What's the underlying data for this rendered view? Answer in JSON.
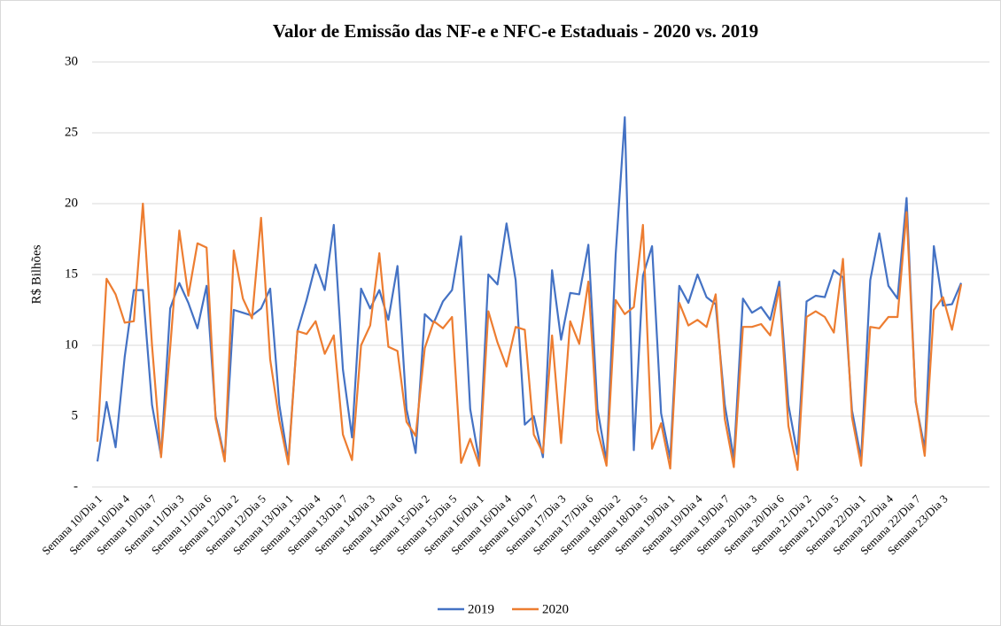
{
  "chart_data": {
    "type": "line",
    "title": "Valor de Emissão das NF-e e NFC-e Estaduais - 2020 vs. 2019",
    "y_label": "R$ Bilhões",
    "categories": [
      "Semana 10/Dia 1",
      null,
      null,
      "Semana 10/Dia 4",
      null,
      null,
      "Semana 10/Dia 7",
      null,
      null,
      "Semana 11/Dia 3",
      null,
      null,
      "Semana 11/Dia 6",
      null,
      null,
      "Semana 12/Dia 2",
      null,
      null,
      "Semana 12/Dia 5",
      null,
      null,
      "Semana 13/Dia 1",
      null,
      null,
      "Semana 13/Dia 4",
      null,
      null,
      "Semana 13/Dia 7",
      null,
      null,
      "Semana 14/Dia 3",
      null,
      null,
      "Semana 14/Dia 6",
      null,
      null,
      "Semana 15/Dia 2",
      null,
      null,
      "Semana 15/Dia 5",
      null,
      null,
      "Semana 16/Dia 1",
      null,
      null,
      "Semana 16/Dia 4",
      null,
      null,
      "Semana 16/Dia 7",
      null,
      null,
      "Semana 17/Dia 3",
      null,
      null,
      "Semana 17/Dia 6",
      null,
      null,
      "Semana 18/Dia 2",
      null,
      null,
      "Semana 18/Dia 5",
      null,
      null,
      "Semana 19/Dia 1",
      null,
      null,
      "Semana 19/Dia 4",
      null,
      null,
      "Semana 19/Dia 7",
      null,
      null,
      "Semana 20/Dia 3",
      null,
      null,
      "Semana 20/Dia 6",
      null,
      null,
      "Semana 21/Dia 2",
      null,
      null,
      "Semana 21/Dia 5",
      null,
      null,
      "Semana 22/Dia 1",
      null,
      null,
      "Semana 22/Dia 4",
      null,
      null,
      "Semana 22/Dia 7",
      null,
      null,
      "Semana 23/Dia 3",
      null,
      null
    ],
    "series": [
      {
        "name": "2019",
        "color": "#4472c4",
        "values": [
          1.8,
          6.0,
          2.8,
          9.2,
          13.9,
          13.9,
          5.8,
          2.2,
          12.6,
          14.4,
          13.0,
          11.2,
          14.2,
          5.0,
          2.0,
          12.5,
          12.3,
          12.1,
          12.6,
          14.0,
          5.8,
          1.8,
          11.0,
          13.2,
          15.7,
          13.9,
          18.5,
          8.3,
          3.5,
          14.0,
          12.6,
          13.9,
          11.8,
          15.6,
          5.5,
          2.4,
          12.2,
          11.6,
          13.1,
          13.9,
          17.7,
          5.5,
          1.8,
          15.0,
          14.3,
          18.6,
          14.6,
          4.4,
          5.0,
          2.1,
          15.3,
          10.4,
          13.7,
          13.6,
          17.1,
          5.5,
          1.8,
          16.4,
          26.1,
          2.6,
          14.9,
          17.0,
          5.2,
          2.0,
          14.2,
          13.0,
          15.0,
          13.4,
          12.9,
          5.8,
          2.0,
          13.3,
          12.3,
          12.7,
          11.8,
          14.5,
          5.8,
          2.3,
          13.1,
          13.5,
          13.4,
          15.3,
          14.8,
          5.4,
          2.0,
          14.6,
          17.9,
          14.2,
          13.3,
          20.4,
          6.0,
          2.7,
          17.0,
          12.8,
          12.9,
          14.4
        ]
      },
      {
        "name": "2020",
        "color": "#ed7d31",
        "values": [
          3.2,
          14.7,
          13.6,
          11.6,
          11.7,
          20.0,
          10.0,
          2.1,
          9.8,
          18.1,
          13.5,
          17.2,
          16.9,
          4.8,
          1.8,
          16.7,
          13.3,
          11.9,
          19.0,
          9.0,
          4.7,
          1.6,
          11.0,
          10.8,
          11.7,
          9.4,
          10.7,
          3.7,
          1.9,
          10.0,
          11.4,
          16.5,
          9.9,
          9.6,
          4.6,
          3.6,
          9.8,
          11.7,
          11.2,
          12.0,
          1.7,
          3.4,
          1.5,
          12.4,
          10.2,
          8.5,
          11.3,
          11.1,
          3.7,
          2.4,
          10.7,
          3.1,
          11.7,
          10.1,
          14.5,
          4.0,
          1.5,
          13.2,
          12.2,
          12.7,
          18.5,
          2.7,
          4.5,
          1.3,
          13.0,
          11.4,
          11.8,
          11.3,
          13.6,
          4.8,
          1.4,
          11.3,
          11.3,
          11.5,
          10.7,
          14.1,
          4.3,
          1.2,
          12.0,
          12.4,
          12.0,
          10.9,
          16.1,
          4.9,
          1.5,
          11.3,
          11.2,
          12.0,
          12.0,
          19.4,
          6.1,
          2.2,
          12.5,
          13.4,
          11.1,
          14.3
        ]
      }
    ],
    "ylim": [
      0,
      30
    ],
    "yticks": [
      {
        "value": 0,
        "label": "-"
      },
      5,
      10,
      15,
      20,
      25,
      30
    ],
    "grid": true,
    "legend": "bottom"
  }
}
